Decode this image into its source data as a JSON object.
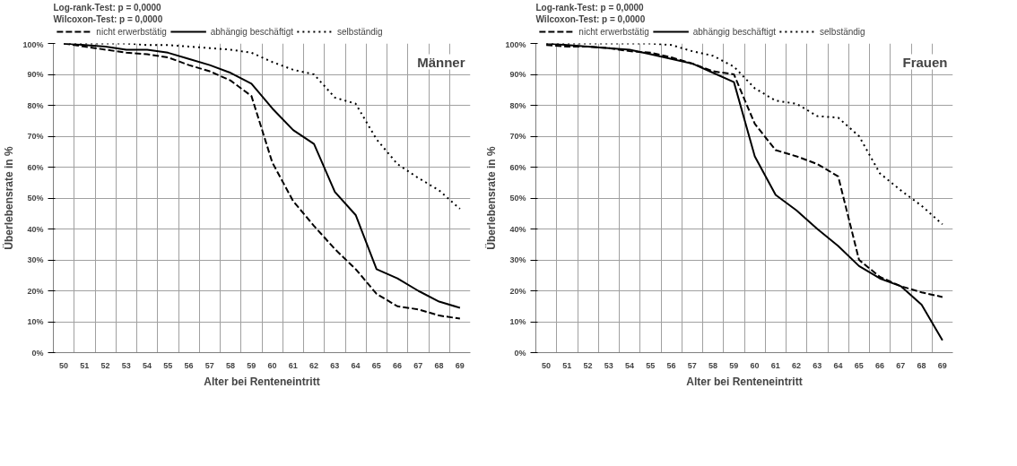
{
  "chart_data": [
    {
      "type": "line",
      "title": "Männer",
      "annotations": [
        "Log-rank-Test: p = 0,0000",
        "Wilcoxon-Test: p = 0,0000"
      ],
      "xlabel": "Alter bei Renteneintritt",
      "ylabel": "Überlebensrate in %",
      "categories": [
        "50",
        "51",
        "52",
        "53",
        "54",
        "55",
        "56",
        "57",
        "58",
        "59",
        "60",
        "61",
        "62",
        "63",
        "64",
        "65",
        "66",
        "67",
        "68",
        "69"
      ],
      "ylim": [
        0,
        100
      ],
      "yticks": [
        {
          "value": 0,
          "label": "0%"
        },
        {
          "value": 10,
          "label": "10%"
        },
        {
          "value": 20,
          "label": "20%"
        },
        {
          "value": 30,
          "label": "30%"
        },
        {
          "value": 40,
          "label": "40%"
        },
        {
          "value": 50,
          "label": "50%"
        },
        {
          "value": 60,
          "label": "60%"
        },
        {
          "value": 70,
          "label": "70%"
        },
        {
          "value": 80,
          "label": "80%"
        },
        {
          "value": 90,
          "label": "90%"
        },
        {
          "value": 100,
          "label": "100%"
        }
      ],
      "grid": true,
      "legend": "top",
      "marker": "none",
      "series": [
        {
          "name": "nicht erwerbstätig",
          "color": "#000000",
          "line_style": "dashed",
          "values": [
            100,
            99,
            98,
            97,
            96.5,
            95.5,
            93,
            91,
            88,
            83,
            61.5,
            49,
            41,
            33.5,
            27,
            19,
            15,
            14,
            12,
            11
          ]
        },
        {
          "name": "abhängig beschäftigt",
          "color": "#000000",
          "line_style": "solid",
          "values": [
            100,
            99.5,
            99,
            98,
            98,
            97,
            95,
            93,
            90.5,
            87,
            79,
            72,
            67.5,
            52,
            44.5,
            27,
            24,
            20,
            16.5,
            14.5
          ]
        },
        {
          "name": "selbständig",
          "color": "#000000",
          "line_style": "dotted",
          "values": [
            100,
            100,
            100,
            100,
            99.5,
            99.5,
            99,
            98.5,
            98,
            97,
            94,
            91.5,
            90,
            82.5,
            80.5,
            69,
            61,
            56.5,
            52.5,
            46.5
          ]
        }
      ]
    },
    {
      "type": "line",
      "title": "Frauen",
      "annotations": [
        "Log-rank-Test: p = 0,0000",
        "Wilcoxon-Test: p = 0,0000"
      ],
      "xlabel": "Alter bei Renteneintritt",
      "ylabel": "Überlebensrate in %",
      "categories": [
        "50",
        "51",
        "52",
        "53",
        "54",
        "55",
        "56",
        "57",
        "58",
        "59",
        "60",
        "61",
        "62",
        "63",
        "64",
        "65",
        "66",
        "67",
        "68",
        "69"
      ],
      "ylim": [
        0,
        100
      ],
      "yticks": [
        {
          "value": 0,
          "label": "0%"
        },
        {
          "value": 10,
          "label": "10%"
        },
        {
          "value": 20,
          "label": "20%"
        },
        {
          "value": 30,
          "label": "30%"
        },
        {
          "value": 40,
          "label": "40%"
        },
        {
          "value": 50,
          "label": "50%"
        },
        {
          "value": 60,
          "label": "60%"
        },
        {
          "value": 70,
          "label": "70%"
        },
        {
          "value": 80,
          "label": "80%"
        },
        {
          "value": 90,
          "label": "90%"
        },
        {
          "value": 100,
          "label": "100%"
        }
      ],
      "grid": true,
      "legend": "top",
      "marker": "none",
      "series": [
        {
          "name": "nicht erwerbstätig",
          "color": "#000000",
          "line_style": "dashed",
          "values": [
            99.5,
            99,
            99,
            98.5,
            97.5,
            97,
            95.5,
            93.5,
            91,
            90,
            74,
            65.5,
            63.5,
            61,
            57,
            30,
            24.5,
            21.5,
            19.5,
            18
          ]
        },
        {
          "name": "abhängig beschäftigt",
          "color": "#000000",
          "line_style": "solid",
          "values": [
            100,
            99.5,
            99,
            98.5,
            98,
            96.5,
            95,
            93.5,
            90.5,
            87.5,
            63.5,
            51,
            46,
            40,
            34.5,
            28,
            24,
            21.5,
            15.5,
            4
          ]
        },
        {
          "name": "selbständig",
          "color": "#000000",
          "line_style": "dotted",
          "values": [
            100,
            100,
            100,
            100,
            100,
            100,
            99.5,
            97.5,
            96,
            92.5,
            85.5,
            81.5,
            80.5,
            76.5,
            76,
            70,
            58,
            52.5,
            47.5,
            41.5
          ]
        }
      ]
    }
  ]
}
